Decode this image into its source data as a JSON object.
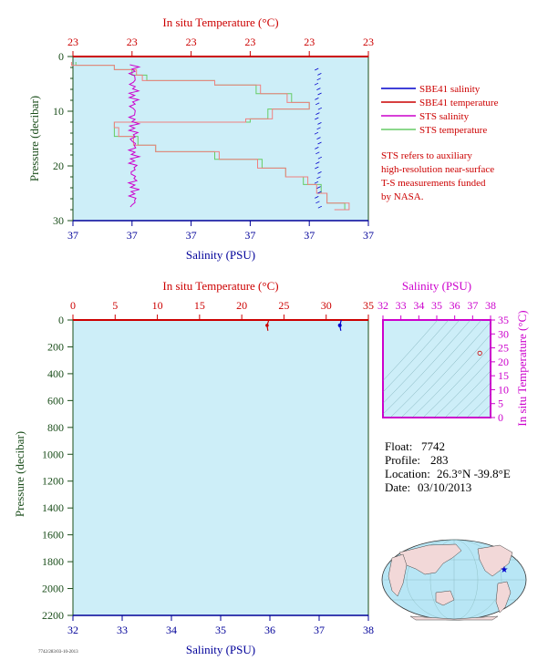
{
  "top_chart": {
    "title_top": "In situ Temperature (°C)",
    "top_ticks": [
      "23",
      "23",
      "23",
      "23",
      "23",
      "23"
    ],
    "bottom_ticks": [
      "37",
      "37",
      "37",
      "37",
      "37",
      "37"
    ],
    "left_ticks": [
      "0",
      "10",
      "20",
      "30"
    ],
    "xlabel": "Salinity (PSU)",
    "ylabel": "Pressure (decibar)",
    "legend": [
      {
        "label": "SBE41 salinity",
        "color": "#0000cc"
      },
      {
        "label": "SBE41 temperature",
        "color": "#cc0000"
      },
      {
        "label": "STS salinity",
        "color": "#cc00cc"
      },
      {
        "label": "STS temperature",
        "color": "#66cc66"
      }
    ],
    "note_lines": [
      "STS refers to auxiliary",
      "high-resolution near-surface",
      "T-S measurements funded",
      "by NASA."
    ]
  },
  "bottom_chart": {
    "title_top": "In situ Temperature (°C)",
    "top_ticks": [
      "0",
      "5",
      "10",
      "15",
      "20",
      "25",
      "30",
      "35"
    ],
    "bottom_ticks": [
      "32",
      "33",
      "34",
      "35",
      "36",
      "37",
      "38"
    ],
    "left_ticks": [
      "0",
      "200",
      "400",
      "600",
      "800",
      "1000",
      "1200",
      "1400",
      "1600",
      "1800",
      "2000",
      "2200"
    ],
    "xlabel": "Salinity (PSU)",
    "ylabel": "Pressure (decibar)"
  },
  "ts_chart": {
    "title_top": "Salinity (PSU)",
    "top_ticks": [
      "32",
      "33",
      "34",
      "35",
      "36",
      "37",
      "38"
    ],
    "right_ticks": [
      "35",
      "30",
      "25",
      "20",
      "15",
      "10",
      "5",
      "0"
    ],
    "ylabel": "In situ Temperature (°C)"
  },
  "info": {
    "float_label": "Float:",
    "float_value": "7742",
    "profile_label": "Profile:",
    "profile_value": "283",
    "location_label": "Location:",
    "location_value": "26.3°N  -39.8°E",
    "date_label": "Date:",
    "date_value": "03/10/2013"
  },
  "footer_note": "7742/283/03-10-2013",
  "colors": {
    "plot_bg": "#cdeef8",
    "temperature": "#cc0000",
    "salinity": "#000099",
    "pressure": "#1a4d1a",
    "ts": "#cc00cc",
    "sts_temp": "#66cc66",
    "sts_temp_alt": "#f08080"
  },
  "chart_data": [
    {
      "type": "line",
      "name": "top-profile",
      "title": "In situ Temperature (°C)",
      "xlabel": "Salinity (PSU)",
      "ylabel": "Pressure (decibar)",
      "ylim": [
        30,
        0
      ],
      "series": [
        {
          "name": "SBE41 salinity",
          "x": [
            37.3,
            37.3,
            37.3,
            37.3,
            37.3,
            37.3
          ],
          "y": [
            2,
            8,
            14,
            20,
            25,
            28
          ]
        },
        {
          "name": "STS salinity",
          "x": [
            37.0,
            37.0,
            37.0,
            37.0,
            37.0,
            37.0
          ],
          "y": [
            2,
            6,
            10,
            15,
            20,
            27
          ]
        },
        {
          "name": "STS temperature",
          "x": [
            0.01,
            0.25,
            0.48,
            0.7,
            0.84,
            0.92
          ],
          "y": [
            1,
            5,
            10,
            14,
            20,
            27
          ]
        }
      ]
    },
    {
      "type": "line",
      "name": "full-profile",
      "title": "In situ Temperature (°C)",
      "xlabel": "Salinity (PSU)",
      "ylabel": "Pressure (decibar)",
      "xlim_temperature": [
        0,
        35
      ],
      "xlim_salinity": [
        32,
        38
      ],
      "ylim": [
        2200,
        0
      ],
      "series": [
        {
          "name": "SBE41 temperature",
          "x": [
            23.2,
            23.0,
            23.1
          ],
          "y": [
            0,
            40,
            80
          ]
        },
        {
          "name": "SBE41 salinity",
          "x": [
            37.45,
            37.42,
            37.44
          ],
          "y": [
            0,
            40,
            80
          ]
        }
      ]
    },
    {
      "type": "scatter",
      "name": "ts-diagram",
      "title": "Salinity (PSU)",
      "ylabel": "In situ Temperature (°C)",
      "xlim": [
        32,
        38
      ],
      "ylim": [
        0,
        35
      ],
      "points": [
        {
          "x": 37.4,
          "y": 23.1
        }
      ]
    }
  ]
}
